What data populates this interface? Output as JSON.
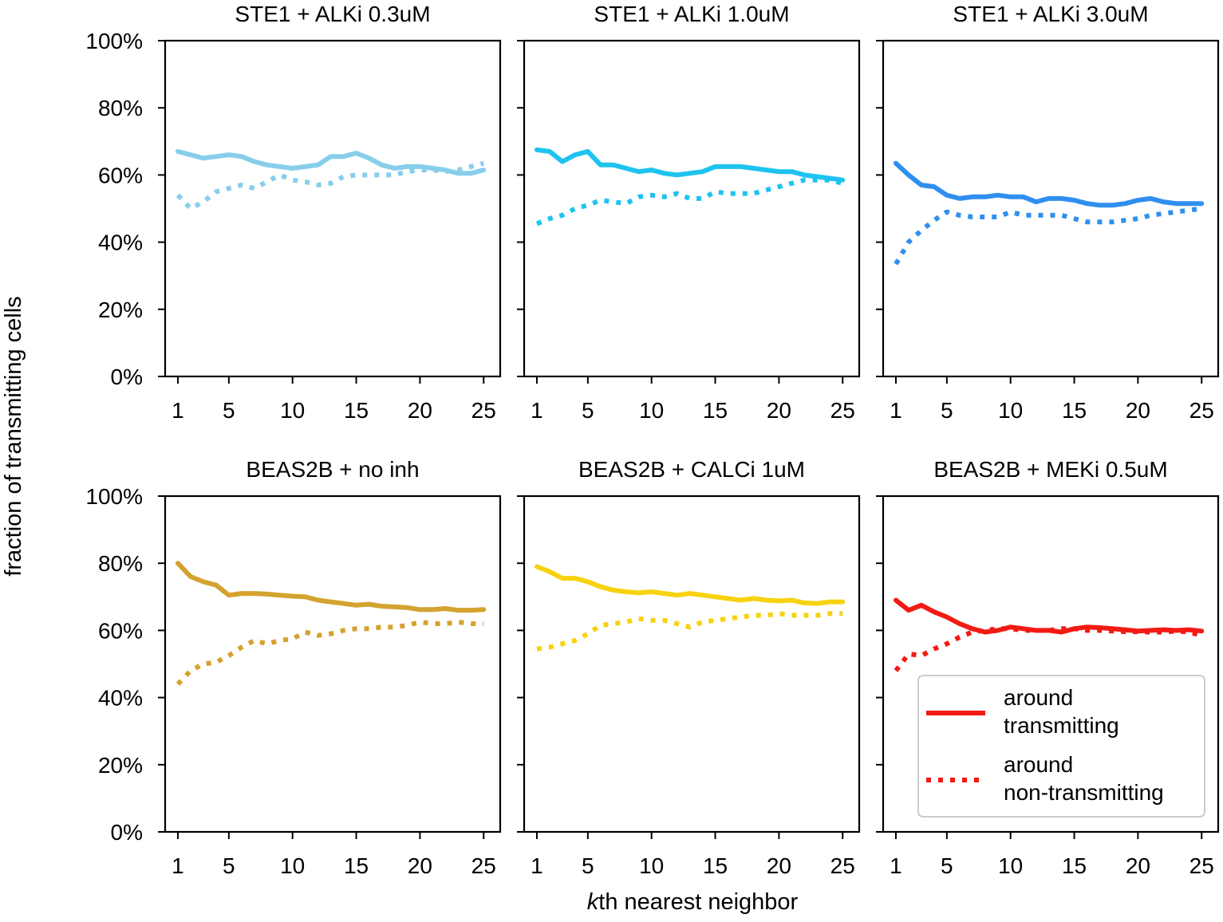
{
  "chart_data": [
    {
      "type": "line",
      "title": "STE1 + ALKi 0.3uM",
      "color": "#87ceeb",
      "x": [
        1,
        2,
        3,
        4,
        5,
        6,
        7,
        8,
        9,
        10,
        11,
        12,
        13,
        14,
        15,
        16,
        17,
        18,
        19,
        20,
        21,
        22,
        23,
        24,
        25
      ],
      "xticks": [
        1,
        5,
        10,
        15,
        20,
        25
      ],
      "xlim": [
        0,
        26.3
      ],
      "ylim": [
        0,
        1
      ],
      "yticks": [
        0,
        0.2,
        0.4,
        0.6,
        0.8,
        1.0
      ],
      "yticklabels": [
        "0%",
        "20%",
        "40%",
        "60%",
        "80%",
        "100%"
      ],
      "series": [
        {
          "name": "around transmitting",
          "style": "solid",
          "values": [
            0.67,
            0.66,
            0.65,
            0.655,
            0.66,
            0.655,
            0.64,
            0.63,
            0.625,
            0.62,
            0.625,
            0.63,
            0.655,
            0.655,
            0.665,
            0.65,
            0.63,
            0.62,
            0.625,
            0.625,
            0.62,
            0.615,
            0.605,
            0.605,
            0.615
          ]
        },
        {
          "name": "around non-transmitting",
          "style": "dotted",
          "values": [
            0.54,
            0.5,
            0.52,
            0.55,
            0.56,
            0.57,
            0.56,
            0.58,
            0.6,
            0.585,
            0.58,
            0.57,
            0.575,
            0.595,
            0.6,
            0.6,
            0.6,
            0.6,
            0.61,
            0.615,
            0.615,
            0.61,
            0.615,
            0.625,
            0.635
          ]
        }
      ]
    },
    {
      "type": "line",
      "title": "STE1 + ALKi 1.0uM",
      "color": "#1ec3ef",
      "x": [
        1,
        2,
        3,
        4,
        5,
        6,
        7,
        8,
        9,
        10,
        11,
        12,
        13,
        14,
        15,
        16,
        17,
        18,
        19,
        20,
        21,
        22,
        23,
        24,
        25
      ],
      "xticks": [
        1,
        5,
        10,
        15,
        20,
        25
      ],
      "xlim": [
        0,
        26.3
      ],
      "ylim": [
        0,
        1
      ],
      "yticks": [
        0,
        0.2,
        0.4,
        0.6,
        0.8,
        1.0
      ],
      "yticklabels": [
        "0%",
        "20%",
        "40%",
        "60%",
        "80%",
        "100%"
      ],
      "series": [
        {
          "name": "around transmitting",
          "style": "solid",
          "values": [
            0.675,
            0.67,
            0.64,
            0.66,
            0.67,
            0.63,
            0.63,
            0.62,
            0.61,
            0.615,
            0.605,
            0.6,
            0.605,
            0.61,
            0.625,
            0.625,
            0.625,
            0.62,
            0.615,
            0.61,
            0.61,
            0.6,
            0.595,
            0.59,
            0.585
          ]
        },
        {
          "name": "around non-transmitting",
          "style": "dotted",
          "values": [
            0.455,
            0.47,
            0.48,
            0.5,
            0.51,
            0.525,
            0.52,
            0.515,
            0.535,
            0.54,
            0.535,
            0.545,
            0.53,
            0.53,
            0.55,
            0.545,
            0.545,
            0.545,
            0.555,
            0.565,
            0.575,
            0.585,
            0.585,
            0.585,
            0.575
          ]
        }
      ]
    },
    {
      "type": "line",
      "title": "STE1 + ALKi 3.0uM",
      "color": "#2f8fef",
      "x": [
        1,
        2,
        3,
        4,
        5,
        6,
        7,
        8,
        9,
        10,
        11,
        12,
        13,
        14,
        15,
        16,
        17,
        18,
        19,
        20,
        21,
        22,
        23,
        24,
        25
      ],
      "xticks": [
        1,
        5,
        10,
        15,
        20,
        25
      ],
      "xlim": [
        0,
        26.3
      ],
      "ylim": [
        0,
        1
      ],
      "yticks": [
        0,
        0.2,
        0.4,
        0.6,
        0.8,
        1.0
      ],
      "yticklabels": [
        "0%",
        "20%",
        "40%",
        "60%",
        "80%",
        "100%"
      ],
      "series": [
        {
          "name": "around transmitting",
          "style": "solid",
          "values": [
            0.635,
            0.6,
            0.57,
            0.565,
            0.54,
            0.53,
            0.535,
            0.535,
            0.54,
            0.535,
            0.535,
            0.52,
            0.53,
            0.53,
            0.525,
            0.515,
            0.51,
            0.51,
            0.515,
            0.525,
            0.53,
            0.52,
            0.515,
            0.515,
            0.515
          ]
        },
        {
          "name": "around non-transmitting",
          "style": "dotted",
          "values": [
            0.335,
            0.4,
            0.435,
            0.465,
            0.49,
            0.48,
            0.475,
            0.475,
            0.475,
            0.49,
            0.48,
            0.48,
            0.48,
            0.48,
            0.47,
            0.46,
            0.46,
            0.46,
            0.465,
            0.47,
            0.48,
            0.485,
            0.49,
            0.495,
            0.5
          ]
        }
      ]
    },
    {
      "type": "line",
      "title": "BEAS2B + no inh",
      "color": "#d4a22e",
      "x": [
        1,
        2,
        3,
        4,
        5,
        6,
        7,
        8,
        9,
        10,
        11,
        12,
        13,
        14,
        15,
        16,
        17,
        18,
        19,
        20,
        21,
        22,
        23,
        24,
        25
      ],
      "xticks": [
        1,
        5,
        10,
        15,
        20,
        25
      ],
      "xlim": [
        0,
        26.3
      ],
      "ylim": [
        0,
        1
      ],
      "yticks": [
        0,
        0.2,
        0.4,
        0.6,
        0.8,
        1.0
      ],
      "yticklabels": [
        "0%",
        "20%",
        "40%",
        "60%",
        "80%",
        "100%"
      ],
      "series": [
        {
          "name": "around transmitting",
          "style": "solid",
          "values": [
            0.8,
            0.76,
            0.745,
            0.735,
            0.705,
            0.71,
            0.71,
            0.708,
            0.705,
            0.702,
            0.7,
            0.69,
            0.685,
            0.68,
            0.675,
            0.678,
            0.672,
            0.67,
            0.668,
            0.662,
            0.662,
            0.665,
            0.66,
            0.66,
            0.662
          ]
        },
        {
          "name": "around non-transmitting",
          "style": "dotted",
          "values": [
            0.44,
            0.48,
            0.5,
            0.505,
            0.525,
            0.55,
            0.57,
            0.56,
            0.57,
            0.575,
            0.595,
            0.585,
            0.59,
            0.6,
            0.605,
            0.605,
            0.61,
            0.61,
            0.615,
            0.625,
            0.62,
            0.62,
            0.625,
            0.62,
            0.62
          ]
        }
      ]
    },
    {
      "type": "line",
      "title": "BEAS2B + CALCi 1uM",
      "color": "#f7d20e",
      "x": [
        1,
        2,
        3,
        4,
        5,
        6,
        7,
        8,
        9,
        10,
        11,
        12,
        13,
        14,
        15,
        16,
        17,
        18,
        19,
        20,
        21,
        22,
        23,
        24,
        25
      ],
      "xticks": [
        1,
        5,
        10,
        15,
        20,
        25
      ],
      "xlim": [
        0,
        26.3
      ],
      "ylim": [
        0,
        1
      ],
      "yticks": [
        0,
        0.2,
        0.4,
        0.6,
        0.8,
        1.0
      ],
      "yticklabels": [
        "0%",
        "20%",
        "40%",
        "60%",
        "80%",
        "100%"
      ],
      "series": [
        {
          "name": "around transmitting",
          "style": "solid",
          "values": [
            0.79,
            0.775,
            0.755,
            0.755,
            0.745,
            0.73,
            0.72,
            0.715,
            0.712,
            0.715,
            0.71,
            0.705,
            0.71,
            0.705,
            0.7,
            0.695,
            0.69,
            0.695,
            0.69,
            0.688,
            0.69,
            0.682,
            0.68,
            0.685,
            0.685
          ]
        },
        {
          "name": "around non-transmitting",
          "style": "dotted",
          "values": [
            0.545,
            0.55,
            0.56,
            0.57,
            0.59,
            0.615,
            0.62,
            0.625,
            0.635,
            0.63,
            0.63,
            0.62,
            0.61,
            0.625,
            0.63,
            0.635,
            0.64,
            0.645,
            0.645,
            0.65,
            0.645,
            0.645,
            0.645,
            0.65,
            0.65
          ]
        }
      ]
    },
    {
      "type": "line",
      "title": "BEAS2B + MEKi 0.5uM",
      "color": "#f21b14",
      "x": [
        1,
        2,
        3,
        4,
        5,
        6,
        7,
        8,
        9,
        10,
        11,
        12,
        13,
        14,
        15,
        16,
        17,
        18,
        19,
        20,
        21,
        22,
        23,
        24,
        25
      ],
      "xticks": [
        1,
        5,
        10,
        15,
        20,
        25
      ],
      "xlim": [
        0,
        26.3
      ],
      "ylim": [
        0,
        1
      ],
      "yticks": [
        0,
        0.2,
        0.4,
        0.6,
        0.8,
        1.0
      ],
      "yticklabels": [
        "0%",
        "20%",
        "40%",
        "60%",
        "80%",
        "100%"
      ],
      "series": [
        {
          "name": "around transmitting",
          "style": "solid",
          "values": [
            0.69,
            0.66,
            0.675,
            0.655,
            0.64,
            0.62,
            0.605,
            0.595,
            0.6,
            0.61,
            0.605,
            0.6,
            0.6,
            0.595,
            0.605,
            0.61,
            0.608,
            0.605,
            0.602,
            0.598,
            0.6,
            0.602,
            0.6,
            0.602,
            0.598
          ]
        },
        {
          "name": "around non-transmitting",
          "style": "dotted",
          "values": [
            0.48,
            0.53,
            0.525,
            0.545,
            0.56,
            0.58,
            0.595,
            0.6,
            0.605,
            0.605,
            0.6,
            0.6,
            0.6,
            0.605,
            0.605,
            0.6,
            0.6,
            0.598,
            0.596,
            0.596,
            0.595,
            0.595,
            0.598,
            0.595,
            0.585
          ]
        }
      ]
    }
  ],
  "figure": {
    "xlabel_italic": "k",
    "xlabel_rest": "th nearest neighbor",
    "ylabel": "fraction of transmitting cells"
  },
  "legend": {
    "placement": "lower right of last panel",
    "color": "#f21b14",
    "entries": [
      {
        "style": "solid",
        "line1": "around",
        "line2": "transmitting"
      },
      {
        "style": "dotted",
        "line1": "around",
        "line2": "non-transmitting"
      }
    ]
  }
}
